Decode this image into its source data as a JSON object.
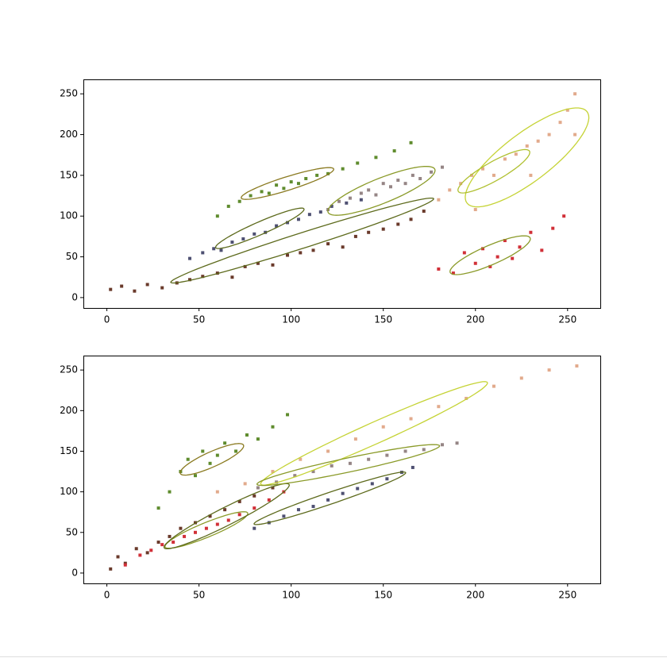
{
  "chart_data": [
    {
      "type": "scatter",
      "xlim": [
        -12.75,
        267.75
      ],
      "ylim": [
        -12.75,
        267.75
      ],
      "xticks": [
        0,
        50,
        100,
        150,
        200,
        250
      ],
      "yticks": [
        0,
        50,
        100,
        150,
        200,
        250
      ],
      "series": [
        {
          "color": "#6a3a2b",
          "x": [
            2,
            8,
            15,
            22,
            30,
            38,
            45,
            52,
            60,
            68,
            75,
            82,
            90,
            98,
            105,
            112,
            120,
            128,
            135,
            142,
            150,
            158,
            165,
            172
          ],
          "y": [
            10,
            14,
            8,
            16,
            12,
            18,
            22,
            26,
            30,
            25,
            38,
            42,
            40,
            52,
            55,
            58,
            66,
            62,
            75,
            80,
            84,
            90,
            96,
            106
          ]
        },
        {
          "color": "#4e5072",
          "x": [
            45,
            52,
            58,
            62,
            68,
            74,
            80,
            86,
            92,
            98,
            104,
            110,
            116,
            122,
            130,
            138
          ],
          "y": [
            48,
            55,
            60,
            58,
            68,
            72,
            78,
            80,
            88,
            92,
            96,
            102,
            105,
            112,
            116,
            120
          ]
        },
        {
          "color": "#5f8c2e",
          "x": [
            60,
            66,
            72,
            78,
            84,
            88,
            92,
            96,
            100,
            104,
            108,
            114,
            120,
            128,
            136,
            146,
            156,
            165
          ],
          "y": [
            100,
            112,
            118,
            125,
            130,
            128,
            138,
            134,
            142,
            140,
            146,
            150,
            152,
            158,
            165,
            172,
            180,
            190
          ]
        },
        {
          "color": "#958585",
          "x": [
            120,
            126,
            132,
            138,
            142,
            146,
            150,
            154,
            158,
            162,
            166,
            170,
            176,
            182
          ],
          "y": [
            108,
            118,
            122,
            128,
            132,
            126,
            140,
            136,
            144,
            140,
            150,
            146,
            154,
            160
          ]
        },
        {
          "color": "#e2aa8c",
          "x": [
            180,
            186,
            192,
            198,
            204,
            210,
            216,
            222,
            228,
            234,
            240,
            246,
            250,
            254,
            254,
            200,
            230
          ],
          "y": [
            120,
            132,
            140,
            150,
            158,
            150,
            170,
            176,
            186,
            192,
            200,
            215,
            230,
            250,
            200,
            108,
            150
          ]
        },
        {
          "color": "#d13038",
          "x": [
            180,
            188,
            194,
            200,
            204,
            208,
            212,
            216,
            220,
            224,
            230,
            236,
            242,
            248
          ],
          "y": [
            35,
            30,
            55,
            42,
            60,
            38,
            50,
            70,
            48,
            62,
            80,
            58,
            85,
            100
          ]
        }
      ],
      "ellipses": [
        {
          "cx": 98,
          "cy": 140,
          "rx": 31,
          "ry": 7,
          "angle": 37,
          "color": "#8a7a20"
        },
        {
          "cx": 83,
          "cy": 85,
          "rx": 34,
          "ry": 6,
          "angle": 46,
          "color": "#5d6a1c"
        },
        {
          "cx": 106,
          "cy": 70,
          "rx": 88,
          "ry": 8,
          "angle": 36,
          "color": "#5d6a1c"
        },
        {
          "cx": 149,
          "cy": 131,
          "rx": 40,
          "ry": 12,
          "angle": 46,
          "color": "#8a9a28"
        },
        {
          "cx": 228,
          "cy": 172,
          "rx": 67,
          "ry": 18,
          "angle": 64,
          "color": "#c5d335"
        },
        {
          "cx": 210,
          "cy": 155,
          "rx": 32,
          "ry": 8,
          "angle": 55,
          "color": "#b0c030"
        },
        {
          "cx": 208,
          "cy": 52,
          "rx": 31,
          "ry": 9,
          "angle": 48,
          "color": "#8a9a28"
        }
      ]
    },
    {
      "type": "scatter",
      "xlim": [
        -12.75,
        267.75
      ],
      "ylim": [
        -12.75,
        267.75
      ],
      "xticks": [
        0,
        50,
        100,
        150,
        200,
        250
      ],
      "yticks": [
        0,
        50,
        100,
        150,
        200,
        250
      ],
      "series": [
        {
          "color": "#6a3a2b",
          "x": [
            2,
            6,
            10,
            16,
            22,
            28,
            34,
            40,
            48,
            56,
            64,
            72,
            80,
            90
          ],
          "y": [
            5,
            20,
            12,
            30,
            25,
            38,
            45,
            55,
            62,
            70,
            78,
            88,
            95,
            105
          ]
        },
        {
          "color": "#e2aa8c",
          "x": [
            60,
            75,
            90,
            105,
            120,
            135,
            150,
            165,
            180,
            195,
            210,
            225,
            240,
            255
          ],
          "y": [
            100,
            110,
            125,
            140,
            150,
            165,
            180,
            190,
            205,
            215,
            230,
            240,
            250,
            255
          ]
        },
        {
          "color": "#958585",
          "x": [
            82,
            92,
            102,
            112,
            122,
            132,
            142,
            152,
            162,
            172,
            182,
            190
          ],
          "y": [
            105,
            112,
            120,
            125,
            132,
            135,
            140,
            145,
            150,
            152,
            158,
            160
          ]
        },
        {
          "color": "#4e5072",
          "x": [
            80,
            88,
            96,
            104,
            112,
            120,
            128,
            136,
            144,
            152,
            160,
            166
          ],
          "y": [
            55,
            62,
            70,
            78,
            82,
            90,
            98,
            104,
            110,
            116,
            124,
            130
          ]
        },
        {
          "color": "#d13038",
          "x": [
            10,
            18,
            24,
            30,
            36,
            42,
            48,
            54,
            60,
            66,
            72,
            80,
            88,
            96
          ],
          "y": [
            10,
            22,
            28,
            35,
            38,
            45,
            50,
            55,
            60,
            65,
            72,
            80,
            90,
            100
          ]
        },
        {
          "color": "#5f8c2e",
          "x": [
            28,
            34,
            40,
            44,
            48,
            52,
            56,
            60,
            64,
            70,
            76,
            82,
            90,
            98
          ],
          "y": [
            80,
            100,
            125,
            140,
            120,
            150,
            135,
            145,
            160,
            150,
            170,
            165,
            180,
            195
          ]
        }
      ],
      "ellipses": [
        {
          "cx": 57,
          "cy": 140,
          "rx": 25,
          "ry": 7,
          "angle": 49,
          "color": "#8a7a20"
        },
        {
          "cx": 54,
          "cy": 53,
          "rx": 31,
          "ry": 7,
          "angle": 45,
          "color": "#8a9a28"
        },
        {
          "cx": 65,
          "cy": 70,
          "rx": 52,
          "ry": 8,
          "angle": 50,
          "color": "#5d6a1c"
        },
        {
          "cx": 145,
          "cy": 172,
          "rx": 88,
          "ry": 10,
          "angle": 46,
          "color": "#c5d335"
        },
        {
          "cx": 131,
          "cy": 133,
          "rx": 55,
          "ry": 8,
          "angle": 26,
          "color": "#8a9a28"
        },
        {
          "cx": 121,
          "cy": 92,
          "rx": 52,
          "ry": 6,
          "angle": 38,
          "color": "#5d6a1c"
        }
      ]
    }
  ]
}
